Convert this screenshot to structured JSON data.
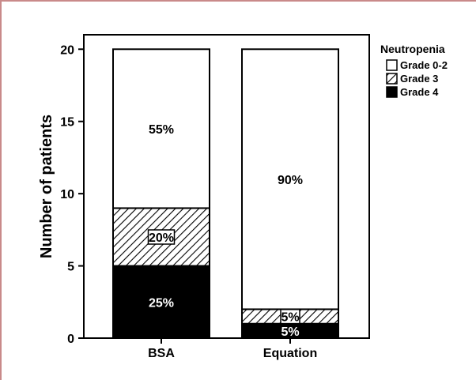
{
  "chart_data": {
    "type": "bar",
    "stacked": true,
    "title": "",
    "xlabel": "",
    "ylabel": "Number of patients",
    "ylim": [
      0,
      21
    ],
    "yticks": [
      0,
      5,
      10,
      15,
      20
    ],
    "categories": [
      "BSA",
      "Equation"
    ],
    "series": [
      {
        "name": "Grade 4",
        "values": [
          5,
          1
        ],
        "labels": [
          "25%",
          "5%"
        ],
        "style": "solid-black"
      },
      {
        "name": "Grade 3",
        "values": [
          4,
          1
        ],
        "labels": [
          "20%",
          "5%"
        ],
        "style": "hatched"
      },
      {
        "name": "Grade 0-2",
        "values": [
          11,
          18
        ],
        "labels": [
          "55%",
          "90%"
        ],
        "style": "white"
      }
    ],
    "legend": {
      "title": "Neutropenia",
      "position": "top-right",
      "items": [
        "Grade 0-2",
        "Grade 3",
        "Grade 4"
      ]
    },
    "grid": false
  }
}
